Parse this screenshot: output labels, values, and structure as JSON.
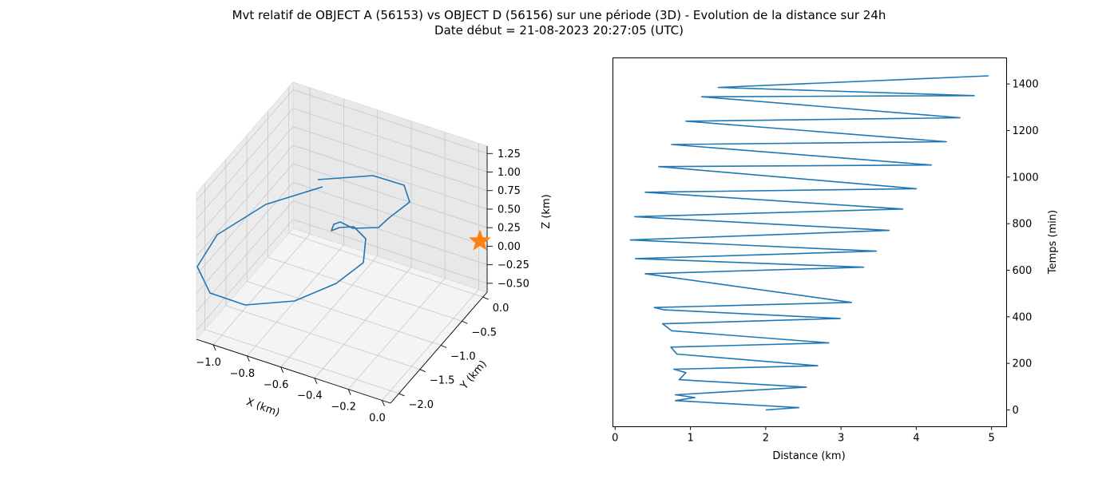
{
  "title_line1": "Mvt relatif de OBJECT A (56153) vs OBJECT D (56156) sur une période (3D) - Evolution de la distance sur 24h",
  "title_line2": "Date début = 21-08-2023 20:27:05 (UTC)",
  "colors": {
    "line": "#1f77b4",
    "star": "#ff7f0e",
    "pane": "#f2f2f2",
    "grid": "#c8c8c8"
  },
  "chart_data": [
    {
      "type": "line3d",
      "xlabel": "X (km)",
      "ylabel": "Y (km)",
      "zlabel": "Z (km)",
      "xlim": [
        -1.1,
        0.05
      ],
      "ylim": [
        -2.2,
        0.1
      ],
      "zlim": [
        -0.62,
        1.35
      ],
      "xticks": [
        "−1.0",
        "−0.8",
        "−0.6",
        "−0.4",
        "−0.2",
        "0.0"
      ],
      "yticks": [
        "0.0",
        "−0.5",
        "−1.0",
        "−1.5",
        "−2.0"
      ],
      "zticks": [
        "1.25",
        "1.00",
        "0.75",
        "0.50",
        "0.25",
        "0.00",
        "−0.25",
        "−0.50"
      ],
      "grid": true,
      "marker": {
        "shape": "star",
        "x": 0.0,
        "y": 0.0,
        "z": 0.0
      }
    },
    {
      "type": "line",
      "xlabel": "Distance (km)",
      "ylabel": "Temps (min)",
      "xlim": [
        -0.03,
        5.2
      ],
      "ylim": [
        -72,
        1512
      ],
      "xticks": [
        "0",
        "1",
        "2",
        "3",
        "4",
        "5"
      ],
      "yticks": [
        "0",
        "200",
        "400",
        "600",
        "800",
        "1000",
        "1200",
        "1400"
      ],
      "y_axis_side": "right",
      "series": [
        {
          "points": [
            [
              2.0,
              0
            ],
            [
              2.44,
              10
            ],
            [
              0.8,
              40
            ],
            [
              1.06,
              53
            ],
            [
              0.8,
              65
            ],
            [
              2.54,
              98
            ],
            [
              0.85,
              130
            ],
            [
              0.94,
              160
            ],
            [
              0.78,
              175
            ],
            [
              2.69,
              190
            ],
            [
              0.82,
              240
            ],
            [
              0.74,
              270
            ],
            [
              2.84,
              288
            ],
            [
              0.75,
              340
            ],
            [
              0.63,
              370
            ],
            [
              2.99,
              393
            ],
            [
              0.65,
              430
            ],
            [
              0.52,
              440
            ],
            [
              3.14,
              462
            ],
            [
              0.4,
              585
            ],
            [
              3.3,
              613
            ],
            [
              0.27,
              650
            ],
            [
              3.47,
              682
            ],
            [
              0.2,
              730
            ],
            [
              3.64,
              771
            ],
            [
              0.26,
              830
            ],
            [
              3.82,
              863
            ],
            [
              0.4,
              935
            ],
            [
              4.0,
              950
            ],
            [
              0.58,
              1045
            ],
            [
              4.2,
              1052
            ],
            [
              0.75,
              1140
            ],
            [
              4.4,
              1152
            ],
            [
              0.94,
              1240
            ],
            [
              4.58,
              1255
            ],
            [
              1.15,
              1345
            ],
            [
              4.77,
              1350
            ],
            [
              1.37,
              1385
            ],
            [
              4.96,
              1435
            ]
          ]
        }
      ]
    }
  ]
}
